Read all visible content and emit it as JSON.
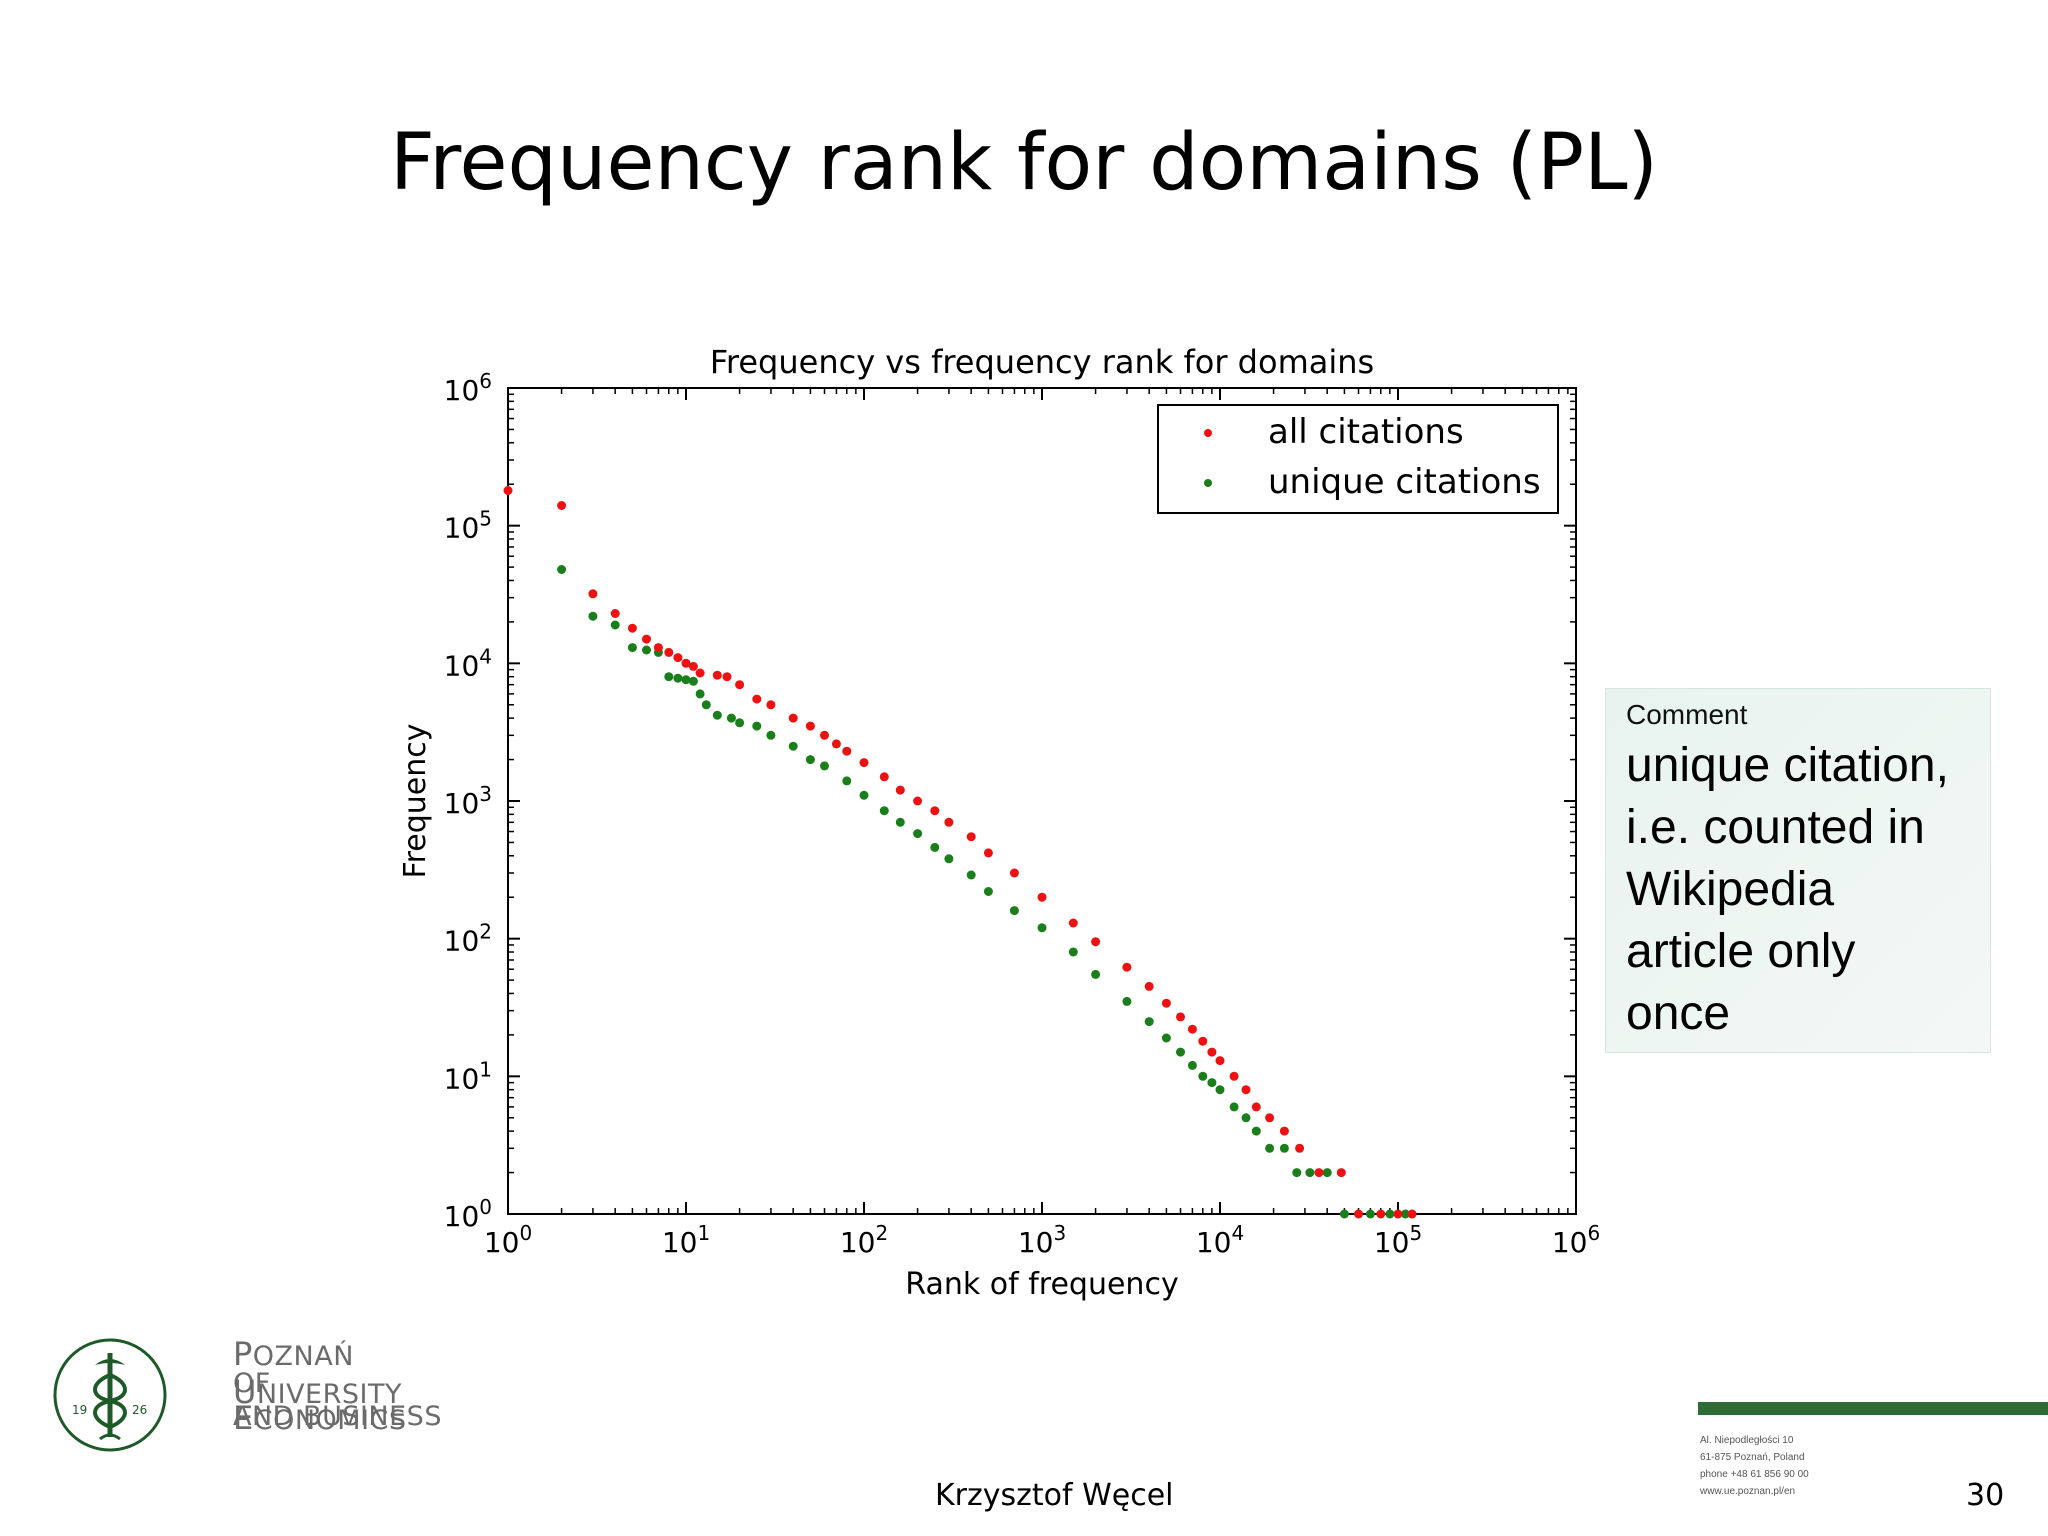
{
  "slide": {
    "title": "Frequency rank for domains (PL)",
    "comment_label": "Comment",
    "comment_text": "unique citation, i.e. counted in Wikipedia article only once",
    "university": {
      "line1_cap1": "P",
      "line1_rest1": "OZNAŃ ",
      "line1_cap2": "U",
      "line1_rest2": "NIVERSITY",
      "line2_pre": "OF ",
      "line2_cap": "E",
      "line2_rest": "CONOMICS",
      "line3": "AND BUSINESS",
      "seal_left": "19",
      "seal_right": "26"
    },
    "address": {
      "line1": "Al. Niepodległości 10",
      "line2": "61-875 Poznań, Poland",
      "line3": "phone +48 61 856 90 00",
      "line4": "www.ue.poznan.pl/en"
    },
    "author": "Krzysztof Węcel",
    "page_number": "30",
    "colors": {
      "brand_green": "#2f6b34",
      "series_red": "#ee1111",
      "series_green": "#1a7f1a"
    }
  },
  "chart_data": {
    "type": "scatter",
    "title": "Frequency vs frequency rank for domains",
    "xlabel": "Rank of frequency",
    "ylabel": "Frequency",
    "xscale": "log",
    "yscale": "log",
    "xlim": [
      1,
      1000000
    ],
    "ylim": [
      1,
      1000000
    ],
    "x_tick_labels": [
      "10^0",
      "10^1",
      "10^2",
      "10^3",
      "10^4",
      "10^5",
      "10^6"
    ],
    "y_tick_labels": [
      "10^0",
      "10^1",
      "10^2",
      "10^3",
      "10^4",
      "10^5",
      "10^6"
    ],
    "legend_position": "top-right",
    "series": [
      {
        "name": "all citations",
        "color": "#ee1111",
        "points": [
          [
            1,
            180000
          ],
          [
            2,
            140000
          ],
          [
            3,
            32000
          ],
          [
            4,
            23000
          ],
          [
            5,
            18000
          ],
          [
            6,
            15000
          ],
          [
            7,
            13000
          ],
          [
            8,
            12000
          ],
          [
            9,
            11000
          ],
          [
            10,
            10000
          ],
          [
            11,
            9500
          ],
          [
            12,
            8500
          ],
          [
            15,
            8200
          ],
          [
            17,
            8000
          ],
          [
            20,
            7000
          ],
          [
            25,
            5500
          ],
          [
            30,
            5000
          ],
          [
            40,
            4000
          ],
          [
            50,
            3500
          ],
          [
            60,
            3000
          ],
          [
            70,
            2600
          ],
          [
            80,
            2300
          ],
          [
            100,
            1900
          ],
          [
            130,
            1500
          ],
          [
            160,
            1200
          ],
          [
            200,
            1000
          ],
          [
            250,
            850
          ],
          [
            300,
            700
          ],
          [
            400,
            550
          ],
          [
            500,
            420
          ],
          [
            700,
            300
          ],
          [
            1000,
            200
          ],
          [
            1500,
            130
          ],
          [
            2000,
            95
          ],
          [
            3000,
            62
          ],
          [
            4000,
            45
          ],
          [
            5000,
            34
          ],
          [
            6000,
            27
          ],
          [
            7000,
            22
          ],
          [
            8000,
            18
          ],
          [
            9000,
            15
          ],
          [
            10000,
            13
          ],
          [
            12000,
            10
          ],
          [
            14000,
            8
          ],
          [
            16000,
            6
          ],
          [
            19000,
            5
          ],
          [
            23000,
            4
          ],
          [
            28000,
            3
          ],
          [
            36000,
            2
          ],
          [
            48000,
            2
          ],
          [
            60000,
            1
          ],
          [
            80000,
            1
          ],
          [
            100000,
            1
          ],
          [
            120000,
            1
          ]
        ]
      },
      {
        "name": "unique citations",
        "color": "#1a7f1a",
        "points": [
          [
            2,
            48000
          ],
          [
            3,
            22000
          ],
          [
            4,
            19000
          ],
          [
            5,
            13000
          ],
          [
            6,
            12500
          ],
          [
            7,
            12000
          ],
          [
            8,
            8000
          ],
          [
            9,
            7800
          ],
          [
            10,
            7600
          ],
          [
            11,
            7400
          ],
          [
            12,
            6000
          ],
          [
            13,
            5000
          ],
          [
            15,
            4200
          ],
          [
            18,
            4000
          ],
          [
            20,
            3700
          ],
          [
            25,
            3500
          ],
          [
            30,
            3000
          ],
          [
            40,
            2500
          ],
          [
            50,
            2000
          ],
          [
            60,
            1800
          ],
          [
            80,
            1400
          ],
          [
            100,
            1100
          ],
          [
            130,
            850
          ],
          [
            160,
            700
          ],
          [
            200,
            580
          ],
          [
            250,
            460
          ],
          [
            300,
            380
          ],
          [
            400,
            290
          ],
          [
            500,
            220
          ],
          [
            700,
            160
          ],
          [
            1000,
            120
          ],
          [
            1500,
            80
          ],
          [
            2000,
            55
          ],
          [
            3000,
            35
          ],
          [
            4000,
            25
          ],
          [
            5000,
            19
          ],
          [
            6000,
            15
          ],
          [
            7000,
            12
          ],
          [
            8000,
            10
          ],
          [
            9000,
            9
          ],
          [
            10000,
            8
          ],
          [
            12000,
            6
          ],
          [
            14000,
            5
          ],
          [
            16000,
            4
          ],
          [
            19000,
            3
          ],
          [
            23000,
            3
          ],
          [
            27000,
            2
          ],
          [
            32000,
            2
          ],
          [
            40000,
            2
          ],
          [
            50000,
            1
          ],
          [
            70000,
            1
          ],
          [
            90000,
            1
          ],
          [
            110000,
            1
          ]
        ]
      }
    ]
  }
}
